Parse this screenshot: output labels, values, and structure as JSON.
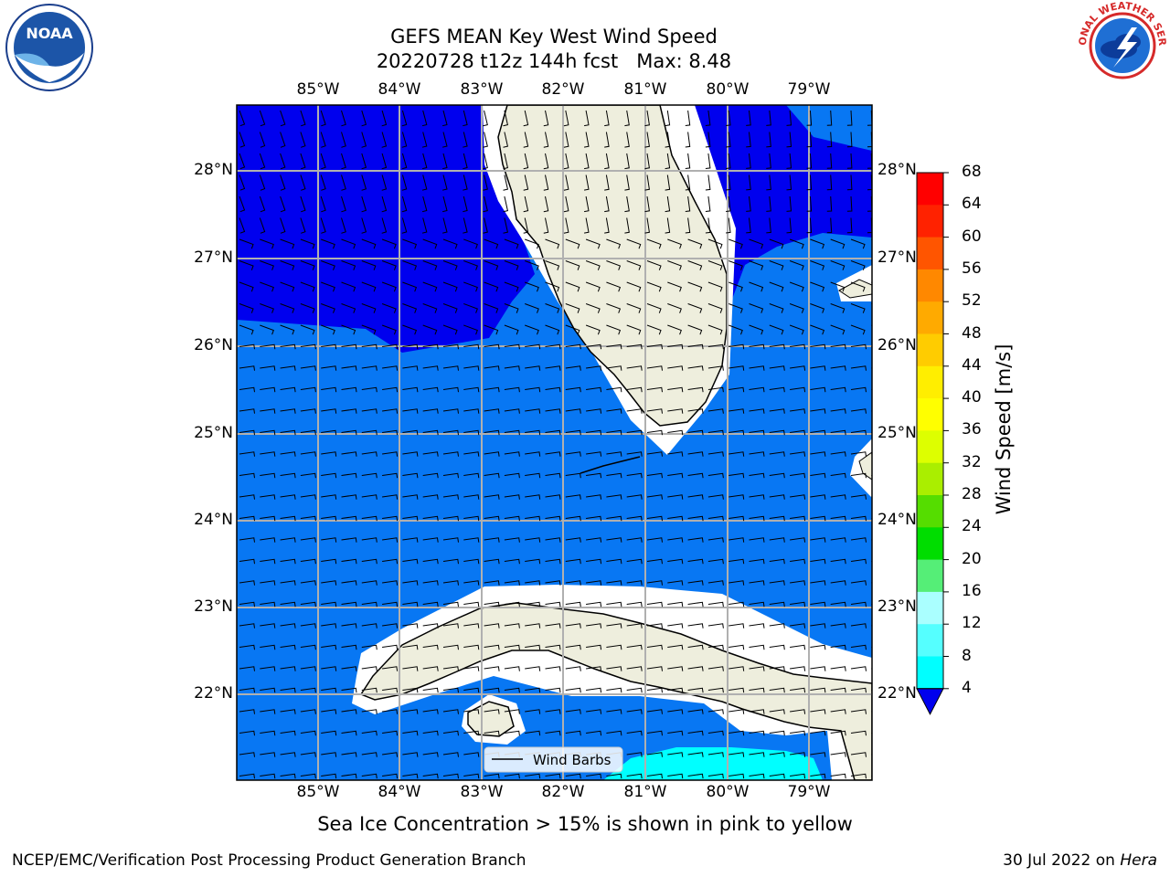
{
  "header": {
    "title_line1": "GEFS MEAN Key West Wind Speed",
    "title_line2": "20220728 t12z 144h fcst   Max: 8.48"
  },
  "map": {
    "lon_labels": [
      "85°W",
      "84°W",
      "83°W",
      "82°W",
      "81°W",
      "80°W",
      "79°W"
    ],
    "lat_labels": [
      "28°N",
      "27°N",
      "26°N",
      "25°N",
      "24°N",
      "23°N",
      "22°N"
    ],
    "legend_label": "Wind Barbs",
    "colors": {
      "dark_blue": "#0000ee",
      "blue": "#0877f3",
      "cyan": "#00ffff",
      "land": "#eeeedd",
      "grid": "#b0b0b0"
    }
  },
  "colorbar": {
    "label": "Wind Speed [m/s]",
    "ticks": [
      "68",
      "64",
      "60",
      "56",
      "52",
      "48",
      "44",
      "40",
      "36",
      "32",
      "28",
      "24",
      "20",
      "16",
      "12",
      "8",
      "4"
    ],
    "colors": [
      "#ff0000",
      "#ff2200",
      "#ff5500",
      "#ff8800",
      "#ffaa00",
      "#ffcc00",
      "#ffee00",
      "#ffff00",
      "#ddff00",
      "#aaee00",
      "#55dd00",
      "#00dd00",
      "#55ee77",
      "#aaffff",
      "#55ffff",
      "#00ffff",
      "#0877f3"
    ],
    "extend_color": "#0000ee"
  },
  "footer": {
    "note": "Sea Ice Concentration > 15% is shown in pink to yellow",
    "credit": "NCEP/EMC/Verification Post Processing Product Generation Branch",
    "date": "30 Jul 2022 on ",
    "host": "Hera"
  },
  "logos": {
    "noaa_text": "NOAA",
    "nws_text": "NATIONAL WEATHER SERVICE"
  }
}
